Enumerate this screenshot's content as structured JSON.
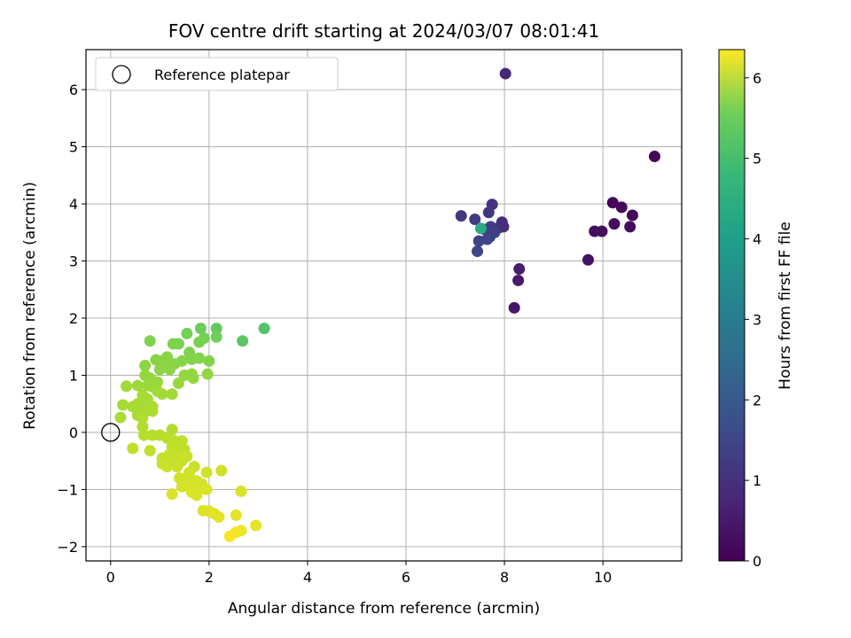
{
  "chart_data": {
    "type": "scatter",
    "title": "FOV centre drift starting at 2024/03/07 08:01:41",
    "xlabel": "Angular distance from reference (arcmin)",
    "ylabel": "Rotation from reference (arcmin)",
    "xlim": [
      -0.5,
      11.6
    ],
    "ylim": [
      -2.25,
      6.7
    ],
    "xticks": [
      0,
      2,
      4,
      6,
      8,
      10
    ],
    "yticks": [
      -2,
      -1,
      0,
      1,
      2,
      3,
      4,
      5,
      6
    ],
    "grid": true,
    "legend": {
      "position": "top-left",
      "entries": [
        "Reference platepar"
      ]
    },
    "reference_point": {
      "x": 0,
      "y": 0,
      "label": "Reference platepar"
    },
    "colorbar": {
      "label": "Hours from first FF file",
      "colormap": "viridis",
      "range": [
        0,
        6.35
      ],
      "ticks": [
        0,
        1,
        2,
        3,
        4,
        5,
        6
      ]
    },
    "points": [
      {
        "x": 11.05,
        "y": 4.83,
        "c": 0.05
      },
      {
        "x": 10.2,
        "y": 4.02,
        "c": 0.1
      },
      {
        "x": 10.38,
        "y": 3.94,
        "c": 0.12
      },
      {
        "x": 10.6,
        "y": 3.8,
        "c": 0.15
      },
      {
        "x": 10.23,
        "y": 3.65,
        "c": 0.18
      },
      {
        "x": 10.55,
        "y": 3.6,
        "c": 0.2
      },
      {
        "x": 9.98,
        "y": 3.52,
        "c": 0.22
      },
      {
        "x": 9.83,
        "y": 3.52,
        "c": 0.25
      },
      {
        "x": 9.7,
        "y": 3.02,
        "c": 0.3
      },
      {
        "x": 8.2,
        "y": 2.18,
        "c": 0.4
      },
      {
        "x": 8.28,
        "y": 2.66,
        "c": 0.45
      },
      {
        "x": 8.3,
        "y": 2.86,
        "c": 0.5
      },
      {
        "x": 8.02,
        "y": 6.28,
        "c": 0.7
      },
      {
        "x": 7.95,
        "y": 3.68,
        "c": 0.8
      },
      {
        "x": 7.98,
        "y": 3.6,
        "c": 0.85
      },
      {
        "x": 7.88,
        "y": 3.58,
        "c": 0.9
      },
      {
        "x": 7.75,
        "y": 3.99,
        "c": 0.95
      },
      {
        "x": 7.68,
        "y": 3.85,
        "c": 1.0
      },
      {
        "x": 7.12,
        "y": 3.79,
        "c": 1.05
      },
      {
        "x": 7.4,
        "y": 3.73,
        "c": 1.1
      },
      {
        "x": 7.72,
        "y": 3.6,
        "c": 1.15
      },
      {
        "x": 7.6,
        "y": 3.55,
        "c": 1.2
      },
      {
        "x": 7.8,
        "y": 3.5,
        "c": 1.22
      },
      {
        "x": 7.7,
        "y": 3.42,
        "c": 1.25
      },
      {
        "x": 7.65,
        "y": 3.38,
        "c": 1.28
      },
      {
        "x": 7.48,
        "y": 3.35,
        "c": 1.3
      },
      {
        "x": 7.45,
        "y": 3.17,
        "c": 1.35
      },
      {
        "x": 7.52,
        "y": 3.57,
        "c": 3.9
      },
      {
        "x": 3.12,
        "y": 1.82,
        "c": 4.6
      },
      {
        "x": 2.68,
        "y": 1.6,
        "c": 4.7
      },
      {
        "x": 2.15,
        "y": 1.82,
        "c": 4.8
      },
      {
        "x": 1.83,
        "y": 1.82,
        "c": 4.9
      },
      {
        "x": 2.15,
        "y": 1.67,
        "c": 4.95
      },
      {
        "x": 1.55,
        "y": 1.73,
        "c": 5.0
      },
      {
        "x": 1.9,
        "y": 1.65,
        "c": 5.0
      },
      {
        "x": 1.8,
        "y": 1.58,
        "c": 5.05
      },
      {
        "x": 1.38,
        "y": 1.55,
        "c": 5.05
      },
      {
        "x": 1.27,
        "y": 1.55,
        "c": 5.1
      },
      {
        "x": 0.8,
        "y": 1.6,
        "c": 5.1
      },
      {
        "x": 1.6,
        "y": 1.4,
        "c": 5.1
      },
      {
        "x": 1.8,
        "y": 1.3,
        "c": 5.15
      },
      {
        "x": 2.0,
        "y": 1.25,
        "c": 5.15
      },
      {
        "x": 1.65,
        "y": 1.28,
        "c": 5.15
      },
      {
        "x": 1.45,
        "y": 1.25,
        "c": 5.15
      },
      {
        "x": 1.3,
        "y": 1.2,
        "c": 5.2
      },
      {
        "x": 1.15,
        "y": 1.32,
        "c": 5.2
      },
      {
        "x": 1.0,
        "y": 1.25,
        "c": 5.2
      },
      {
        "x": 0.92,
        "y": 1.27,
        "c": 5.2
      },
      {
        "x": 1.1,
        "y": 1.15,
        "c": 5.25
      },
      {
        "x": 1.2,
        "y": 1.1,
        "c": 5.25
      },
      {
        "x": 0.7,
        "y": 1.17,
        "c": 5.25
      },
      {
        "x": 1.0,
        "y": 1.1,
        "c": 5.25
      },
      {
        "x": 1.65,
        "y": 1.02,
        "c": 5.3
      },
      {
        "x": 1.97,
        "y": 1.02,
        "c": 5.3
      },
      {
        "x": 1.5,
        "y": 1.0,
        "c": 5.3
      },
      {
        "x": 1.68,
        "y": 0.95,
        "c": 5.3
      },
      {
        "x": 1.38,
        "y": 0.86,
        "c": 5.35
      },
      {
        "x": 0.7,
        "y": 1.0,
        "c": 5.35
      },
      {
        "x": 0.8,
        "y": 0.95,
        "c": 5.35
      },
      {
        "x": 0.95,
        "y": 0.88,
        "c": 5.35
      },
      {
        "x": 0.85,
        "y": 0.8,
        "c": 5.4
      },
      {
        "x": 0.75,
        "y": 0.82,
        "c": 5.4
      },
      {
        "x": 0.55,
        "y": 0.82,
        "c": 5.4
      },
      {
        "x": 0.32,
        "y": 0.81,
        "c": 5.45
      },
      {
        "x": 0.95,
        "y": 0.72,
        "c": 5.45
      },
      {
        "x": 1.05,
        "y": 0.67,
        "c": 5.45
      },
      {
        "x": 1.25,
        "y": 0.67,
        "c": 5.45
      },
      {
        "x": 0.65,
        "y": 0.65,
        "c": 5.5
      },
      {
        "x": 0.75,
        "y": 0.58,
        "c": 5.5
      },
      {
        "x": 0.55,
        "y": 0.5,
        "c": 5.5
      },
      {
        "x": 0.25,
        "y": 0.48,
        "c": 5.5
      },
      {
        "x": 0.45,
        "y": 0.45,
        "c": 5.5
      },
      {
        "x": 0.65,
        "y": 0.45,
        "c": 5.5
      },
      {
        "x": 0.85,
        "y": 0.45,
        "c": 5.55
      },
      {
        "x": 0.85,
        "y": 0.37,
        "c": 5.55
      },
      {
        "x": 0.7,
        "y": 0.37,
        "c": 5.55
      },
      {
        "x": 0.55,
        "y": 0.3,
        "c": 5.55
      },
      {
        "x": 0.2,
        "y": 0.26,
        "c": 5.55
      },
      {
        "x": 0.65,
        "y": 0.25,
        "c": 5.6
      },
      {
        "x": 0.65,
        "y": 0.1,
        "c": 5.6
      },
      {
        "x": 1.25,
        "y": 0.05,
        "c": 5.6
      },
      {
        "x": 0.68,
        "y": -0.05,
        "c": 5.65
      },
      {
        "x": 0.85,
        "y": -0.05,
        "c": 5.65
      },
      {
        "x": 1.0,
        "y": -0.05,
        "c": 5.65
      },
      {
        "x": 1.15,
        "y": -0.1,
        "c": 5.7
      },
      {
        "x": 1.3,
        "y": -0.15,
        "c": 5.7
      },
      {
        "x": 1.45,
        "y": -0.15,
        "c": 5.7
      },
      {
        "x": 1.35,
        "y": -0.25,
        "c": 5.7
      },
      {
        "x": 1.25,
        "y": -0.25,
        "c": 5.75
      },
      {
        "x": 0.45,
        "y": -0.28,
        "c": 5.75
      },
      {
        "x": 0.8,
        "y": -0.32,
        "c": 5.75
      },
      {
        "x": 1.5,
        "y": -0.3,
        "c": 5.75
      },
      {
        "x": 1.2,
        "y": -0.38,
        "c": 5.8
      },
      {
        "x": 1.35,
        "y": -0.4,
        "c": 5.8
      },
      {
        "x": 1.05,
        "y": -0.45,
        "c": 5.8
      },
      {
        "x": 1.2,
        "y": -0.5,
        "c": 5.8
      },
      {
        "x": 1.45,
        "y": -0.5,
        "c": 5.8
      },
      {
        "x": 1.55,
        "y": -0.42,
        "c": 5.85
      },
      {
        "x": 1.05,
        "y": -0.55,
        "c": 5.85
      },
      {
        "x": 1.15,
        "y": -0.6,
        "c": 5.85
      },
      {
        "x": 1.35,
        "y": -0.6,
        "c": 5.85
      },
      {
        "x": 1.7,
        "y": -0.6,
        "c": 5.85
      },
      {
        "x": 1.6,
        "y": -0.7,
        "c": 5.9
      },
      {
        "x": 1.95,
        "y": -0.7,
        "c": 5.9
      },
      {
        "x": 2.25,
        "y": -0.67,
        "c": 5.9
      },
      {
        "x": 1.4,
        "y": -0.8,
        "c": 5.9
      },
      {
        "x": 1.55,
        "y": -0.8,
        "c": 5.9
      },
      {
        "x": 1.75,
        "y": -0.85,
        "c": 5.95
      },
      {
        "x": 1.85,
        "y": -0.9,
        "c": 5.95
      },
      {
        "x": 1.45,
        "y": -0.95,
        "c": 5.95
      },
      {
        "x": 1.6,
        "y": -0.95,
        "c": 5.95
      },
      {
        "x": 1.8,
        "y": -1.0,
        "c": 5.95
      },
      {
        "x": 1.95,
        "y": -1.0,
        "c": 6.0
      },
      {
        "x": 1.65,
        "y": -1.05,
        "c": 6.0
      },
      {
        "x": 1.75,
        "y": -1.1,
        "c": 6.0
      },
      {
        "x": 1.25,
        "y": -1.08,
        "c": 6.0
      },
      {
        "x": 2.65,
        "y": -1.03,
        "c": 6.0
      },
      {
        "x": 1.88,
        "y": -1.37,
        "c": 6.05
      },
      {
        "x": 2.0,
        "y": -1.38,
        "c": 6.05
      },
      {
        "x": 2.1,
        "y": -1.42,
        "c": 6.1
      },
      {
        "x": 2.2,
        "y": -1.48,
        "c": 6.1
      },
      {
        "x": 2.55,
        "y": -1.45,
        "c": 6.1
      },
      {
        "x": 2.95,
        "y": -1.63,
        "c": 6.15
      },
      {
        "x": 2.65,
        "y": -1.72,
        "c": 6.2
      },
      {
        "x": 2.55,
        "y": -1.75,
        "c": 6.25
      },
      {
        "x": 2.42,
        "y": -1.82,
        "c": 6.3
      }
    ]
  }
}
